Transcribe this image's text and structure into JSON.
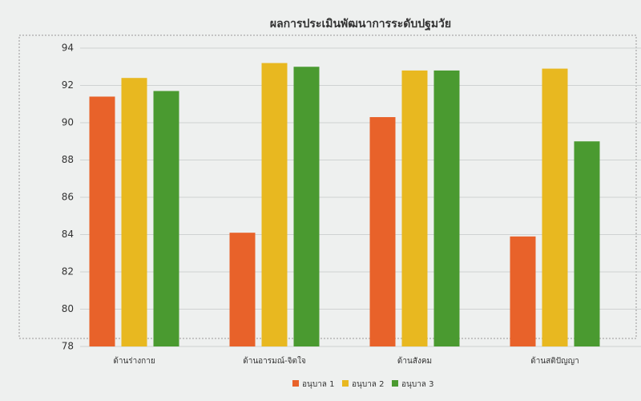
{
  "chart_data": {
    "type": "bar",
    "title": "ผลการประเมินพัฒนาการระดับปฐมวัย",
    "categories": [
      "ด้านร่างกาย",
      "ด้านอารมณ์-จิตใจ",
      "ด้านสังคม",
      "ด้านสติปัญญา"
    ],
    "series": [
      {
        "name": "อนุบาล 1",
        "color": "#e8622a",
        "values": [
          91.4,
          84.1,
          90.3,
          83.9
        ]
      },
      {
        "name": "อนุบาล 2",
        "color": "#e8b820",
        "values": [
          92.4,
          93.2,
          92.8,
          92.9
        ]
      },
      {
        "name": "อนุบาล 3",
        "color": "#4a9a30",
        "values": [
          91.7,
          93.0,
          92.8,
          89.0
        ]
      }
    ],
    "ylim": [
      78,
      94
    ],
    "yticks": [
      78,
      80,
      82,
      84,
      86,
      88,
      90,
      92,
      94
    ],
    "grid": true
  }
}
